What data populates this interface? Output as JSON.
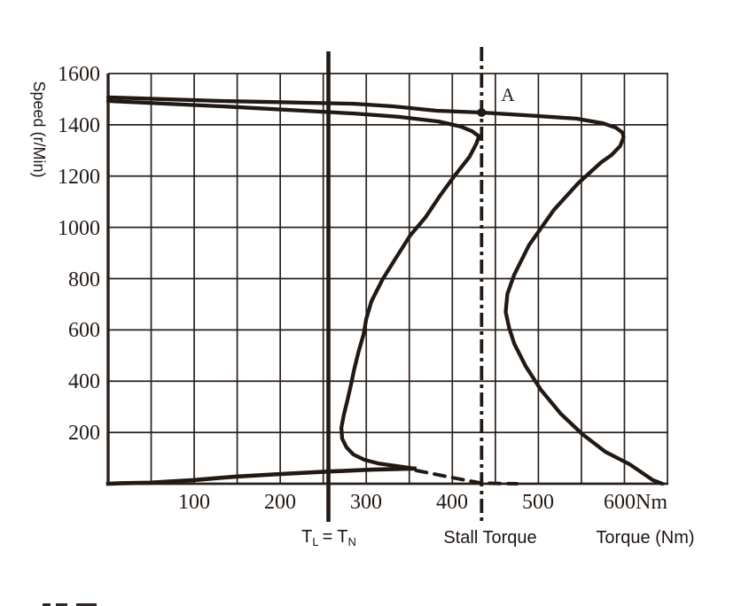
{
  "page": {
    "background": "#ffffff"
  },
  "colors": {
    "ink": "#221914",
    "grid": "#29201b"
  },
  "labels": {
    "y_axis_title": "Speed (r/Min)",
    "x_axis_title": "Torque (Nm)",
    "point_a": "A",
    "stall_torque": "Stall Torque",
    "rated": {
      "base1": "T",
      "sub1": "L",
      "eq": "=",
      "base2": "T",
      "sub2": "N"
    }
  },
  "chart_data": {
    "type": "line",
    "title": "",
    "xlabel": "Torque (Nm)",
    "ylabel": "Speed (r/Min)",
    "xlim": [
      0,
      650
    ],
    "ylim": [
      0,
      1600
    ],
    "x_ticks": [
      100,
      200,
      300,
      400,
      500,
      600
    ],
    "x_tick_labels": [
      "100",
      "200",
      "300",
      "400",
      "500",
      "600Nm"
    ],
    "y_ticks": [
      200,
      400,
      600,
      800,
      1000,
      1200,
      1400,
      1600
    ],
    "y_tick_labels": [
      "200",
      "400",
      "600",
      "800",
      "1000",
      "1200",
      "1400",
      "1600"
    ],
    "grid": {
      "shown": true,
      "x_step": 50,
      "y_step": 200
    },
    "legend_position": "none",
    "series": [
      {
        "name": "motor-natural-characteristic",
        "style": "solid",
        "points": [
          [
            0,
            1507
          ],
          [
            132,
            1493
          ],
          [
            286,
            1482
          ],
          [
            331,
            1472
          ],
          [
            382,
            1455
          ],
          [
            434,
            1448
          ],
          [
            500,
            1434
          ],
          [
            544,
            1424
          ],
          [
            575,
            1406
          ],
          [
            590,
            1389
          ],
          [
            598,
            1369
          ],
          [
            599,
            1351
          ],
          [
            595,
            1317
          ],
          [
            585,
            1282
          ],
          [
            573,
            1254
          ],
          [
            546,
            1171
          ],
          [
            518,
            1068
          ],
          [
            489,
            930
          ],
          [
            472,
            816
          ],
          [
            464,
            740
          ],
          [
            462,
            670
          ],
          [
            466,
            608
          ],
          [
            472,
            546
          ],
          [
            485,
            460
          ],
          [
            503,
            366
          ],
          [
            526,
            273
          ],
          [
            551,
            194
          ],
          [
            578,
            124
          ],
          [
            606,
            76
          ],
          [
            633,
            14
          ],
          [
            644,
            0
          ]
        ]
      },
      {
        "name": "limited-characteristic-upper-branch",
        "style": "solid",
        "points": [
          [
            0,
            1493
          ],
          [
            132,
            1472
          ],
          [
            286,
            1444
          ],
          [
            338,
            1431
          ],
          [
            384,
            1413
          ],
          [
            410,
            1393
          ],
          [
            423,
            1375
          ],
          [
            431,
            1355
          ],
          [
            428,
            1327
          ],
          [
            420,
            1275
          ],
          [
            403,
            1203
          ],
          [
            385,
            1120
          ],
          [
            369,
            1040
          ],
          [
            351,
            968
          ],
          [
            334,
            878
          ],
          [
            319,
            798
          ],
          [
            306,
            712
          ],
          [
            300,
            643
          ],
          [
            297,
            584
          ],
          [
            291,
            515
          ],
          [
            286,
            446
          ],
          [
            282,
            384
          ],
          [
            278,
            325
          ],
          [
            274,
            270
          ],
          [
            271,
            218
          ],
          [
            272,
            176
          ],
          [
            277,
            142
          ],
          [
            285,
            114
          ],
          [
            298,
            93
          ],
          [
            314,
            79
          ],
          [
            335,
            69
          ],
          [
            356,
            59
          ]
        ]
      },
      {
        "name": "limited-characteristic-lower-branch",
        "style": "solid",
        "points": [
          [
            0,
            0
          ],
          [
            16,
            2
          ],
          [
            49,
            4
          ],
          [
            99,
            14
          ],
          [
            149,
            28
          ],
          [
            201,
            38
          ],
          [
            259,
            48
          ],
          [
            307,
            55
          ],
          [
            356,
            59
          ]
        ]
      },
      {
        "name": "dashed-extension-to-stall-point",
        "style": "dashed",
        "points": [
          [
            358,
            52
          ],
          [
            400,
            24
          ],
          [
            434,
            2
          ],
          [
            475,
            0
          ]
        ]
      }
    ],
    "annotations": {
      "point_A": {
        "label": "A",
        "torque": 434,
        "speed": 1448
      },
      "rated_torque_line": {
        "label": "TL = TN",
        "torque": 256,
        "style": "solid-vertical"
      },
      "stall_torque_line": {
        "label": "Stall Torque",
        "torque": 434,
        "style": "dash-dot-vertical"
      }
    }
  }
}
